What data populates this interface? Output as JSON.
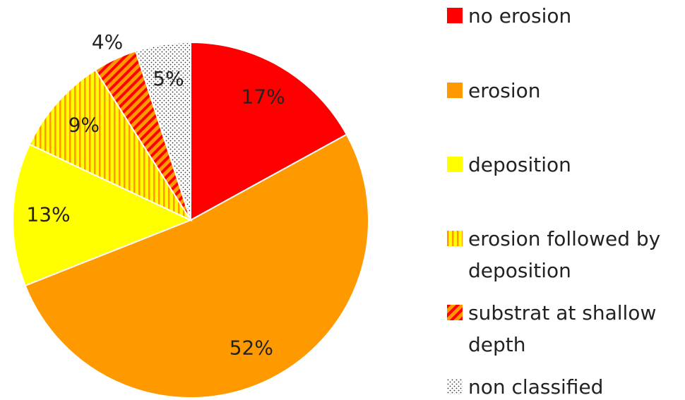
{
  "chart_data": {
    "type": "pie",
    "categories": [
      "no erosion",
      "erosion",
      "deposition",
      "erosion followed by deposition",
      "substrat at shallow depth",
      "non classified"
    ],
    "values": [
      17,
      52,
      13,
      9,
      4,
      5
    ],
    "value_labels": [
      "17%",
      "52%",
      "13%",
      "9%",
      "4%",
      "5%"
    ],
    "colors": [
      "#ff0000",
      "#ff9900",
      "#ffff00",
      "#ffff00",
      "#ff9900",
      "#ffffff"
    ],
    "patterns": [
      "solid",
      "solid",
      "solid",
      "vertical",
      "diagonal",
      "dots"
    ],
    "legend": "right"
  }
}
